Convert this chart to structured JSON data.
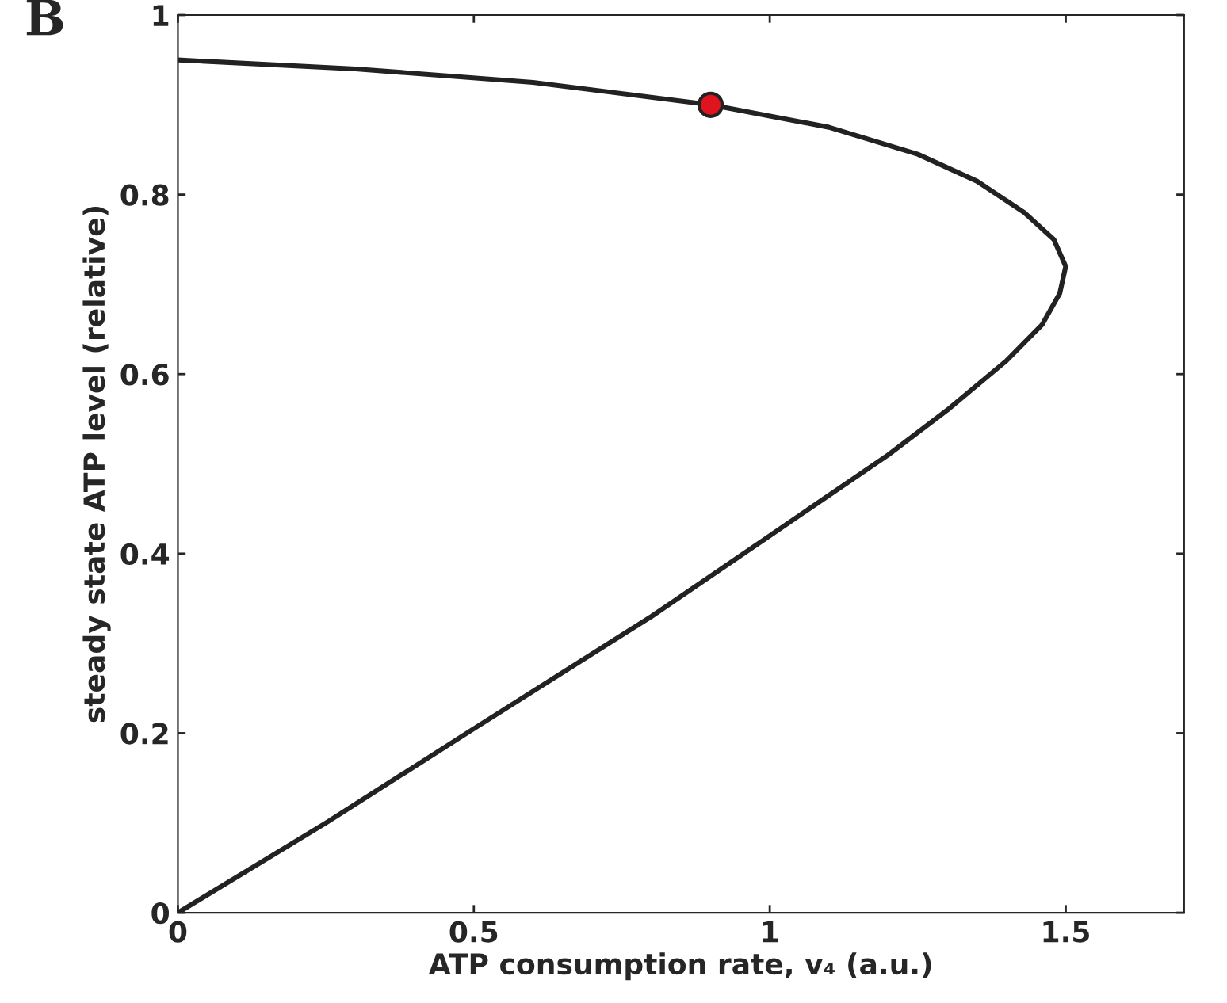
{
  "chart_data": {
    "type": "line",
    "xlabel": "ATP consumption rate, v₄ (a.u.)",
    "ylabel": "steady state ATP level (relative)",
    "annotations": [
      "B"
    ],
    "series": [
      {
        "color": "#222222",
        "x": [
          0,
          0.3,
          0.6,
          0.9,
          1.1,
          1.25,
          1.35,
          1.43,
          1.48,
          1.5,
          1.49,
          1.46,
          1.4,
          1.3,
          1.2,
          1,
          0.8,
          0.5,
          0.25,
          0
        ],
        "values": [
          0.95,
          0.94,
          0.925,
          0.9,
          0.875,
          0.845,
          0.815,
          0.78,
          0.75,
          0.72,
          0.69,
          0.655,
          0.615,
          0.56,
          0.51,
          0.42,
          0.33,
          0.205,
          0.1,
          0
        ]
      },
      {
        "type": "scatter",
        "color": "#e0141e",
        "x": [
          0.9
        ],
        "values": [
          0.9
        ]
      }
    ],
    "xlim": [
      0,
      1.7
    ],
    "ylim": [
      0,
      1
    ],
    "xticks": [
      0,
      0.5,
      1,
      1.5
    ],
    "yticks": [
      0,
      0.2,
      0.4,
      0.6,
      0.8,
      1
    ],
    "grid": false,
    "legend": false,
    "line_style": "solid"
  }
}
